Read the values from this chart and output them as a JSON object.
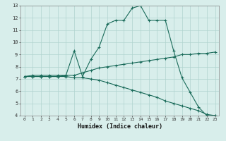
{
  "xlabel": "Humidex (Indice chaleur)",
  "ylabel": "",
  "bg_color": "#d8eeeb",
  "line_color": "#1a6b5a",
  "grid_color": "#b0d4cf",
  "xlim": [
    -0.5,
    23.5
  ],
  "ylim": [
    4,
    13
  ],
  "xticks": [
    0,
    1,
    2,
    3,
    4,
    5,
    6,
    7,
    8,
    9,
    10,
    11,
    12,
    13,
    14,
    15,
    16,
    17,
    18,
    19,
    20,
    21,
    22,
    23
  ],
  "yticks": [
    4,
    5,
    6,
    7,
    8,
    9,
    10,
    11,
    12,
    13
  ],
  "line1_x": [
    0,
    1,
    2,
    3,
    4,
    5,
    6,
    7,
    8,
    9,
    10,
    11,
    12,
    13,
    14,
    15,
    16,
    17,
    18,
    19,
    20,
    21,
    22,
    23
  ],
  "line1_y": [
    7.2,
    7.3,
    7.3,
    7.3,
    7.3,
    7.3,
    9.3,
    7.2,
    8.6,
    9.6,
    11.5,
    11.8,
    11.8,
    12.8,
    13.0,
    11.8,
    11.8,
    11.8,
    9.3,
    7.1,
    5.9,
    4.7,
    4.0,
    4.0
  ],
  "line2_x": [
    0,
    1,
    2,
    3,
    4,
    5,
    6,
    7,
    8,
    9,
    10,
    11,
    12,
    13,
    14,
    15,
    16,
    17,
    18,
    19,
    20,
    21,
    22,
    23
  ],
  "line2_y": [
    7.2,
    7.2,
    7.2,
    7.2,
    7.2,
    7.3,
    7.3,
    7.5,
    7.7,
    7.9,
    8.0,
    8.1,
    8.2,
    8.3,
    8.4,
    8.5,
    8.6,
    8.7,
    8.8,
    9.0,
    9.0,
    9.1,
    9.1,
    9.2
  ],
  "line3_x": [
    0,
    1,
    2,
    3,
    4,
    5,
    6,
    7,
    8,
    9,
    10,
    11,
    12,
    13,
    14,
    15,
    16,
    17,
    18,
    19,
    20,
    21,
    22,
    23
  ],
  "line3_y": [
    7.2,
    7.2,
    7.2,
    7.2,
    7.2,
    7.2,
    7.1,
    7.1,
    7.0,
    6.9,
    6.7,
    6.5,
    6.3,
    6.1,
    5.9,
    5.7,
    5.5,
    5.2,
    5.0,
    4.8,
    4.6,
    4.4,
    4.1,
    4.0
  ]
}
